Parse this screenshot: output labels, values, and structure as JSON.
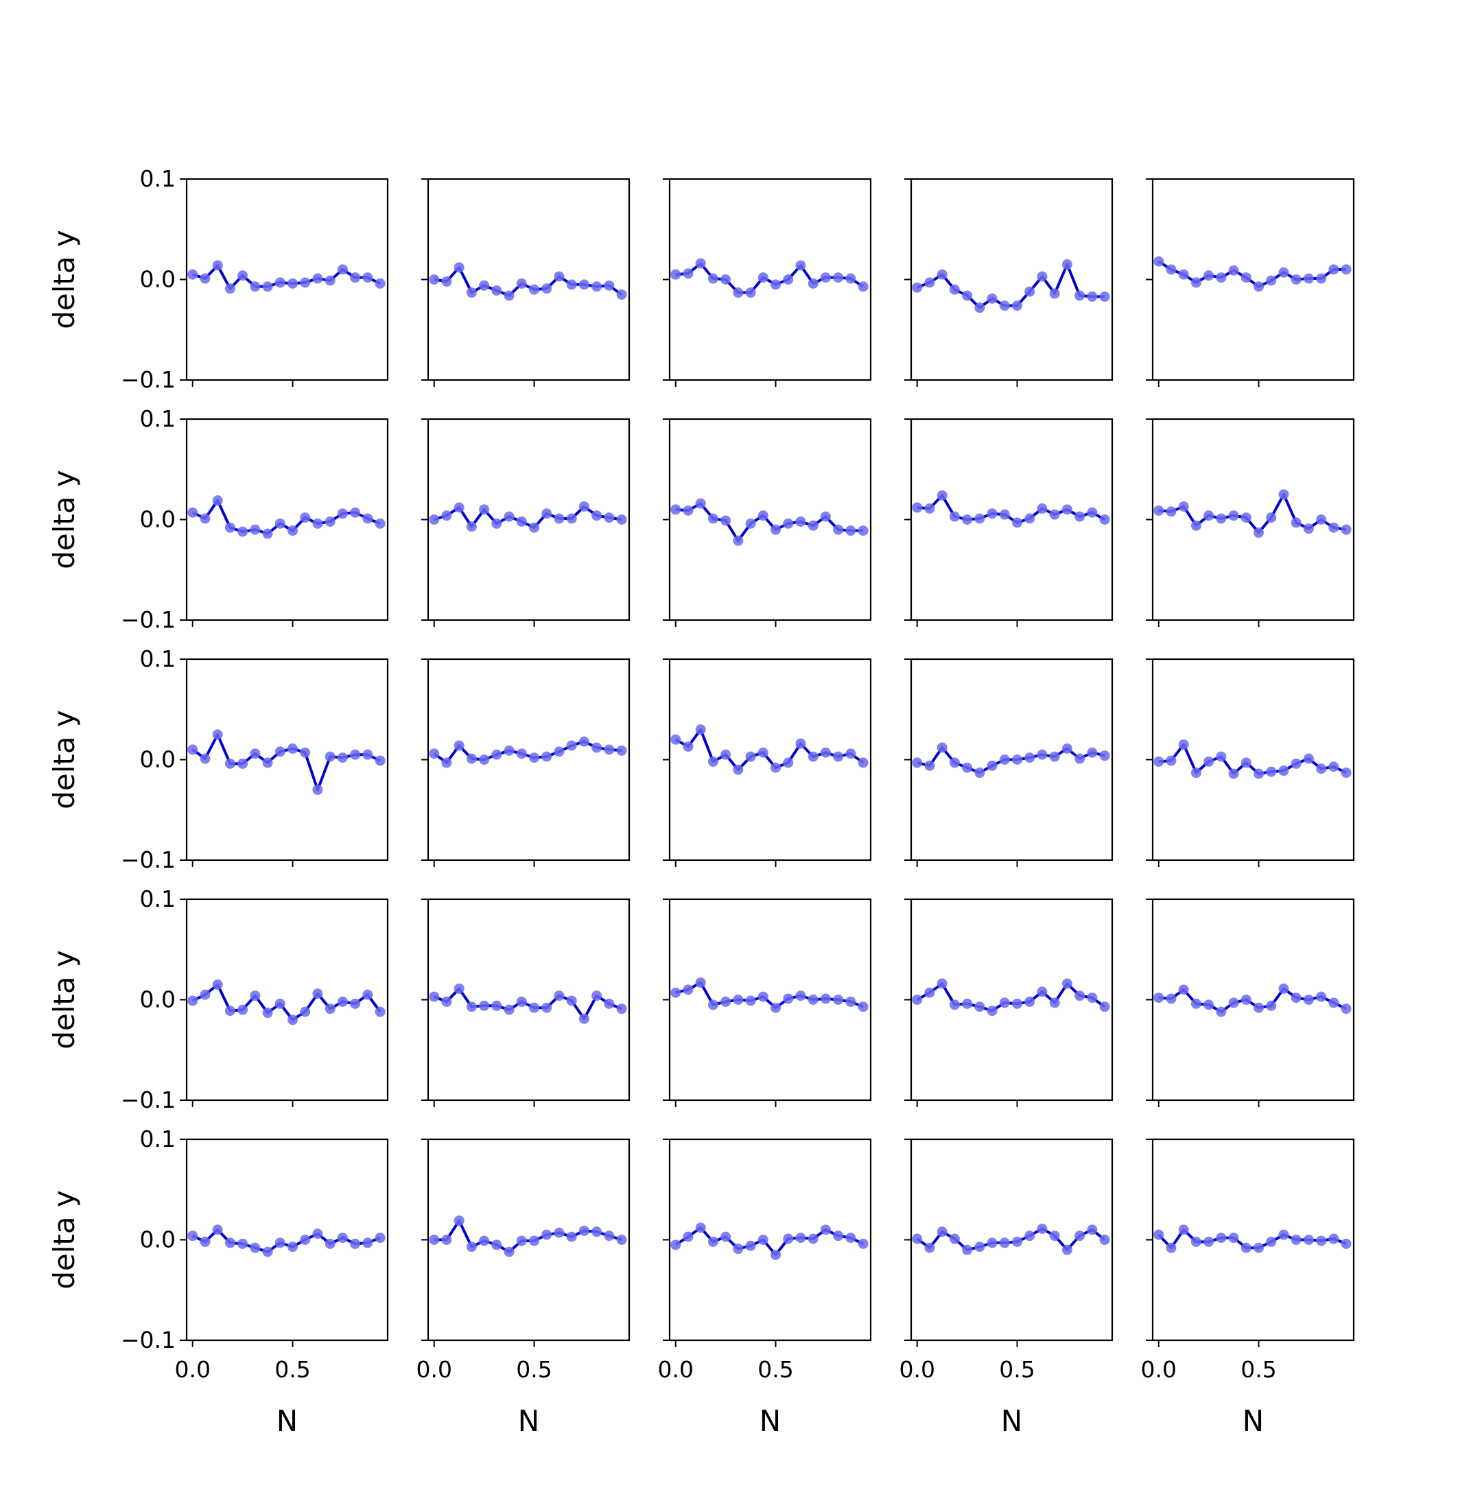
{
  "chart_data": {
    "type": "line",
    "layout": "5x5 grid of small multiples",
    "shared_axes": true,
    "xlabel": "N",
    "ylabel": "delta y",
    "xticks": [
      0.0,
      0.5
    ],
    "xtick_labels": [
      "0.0",
      "0.5"
    ],
    "yticks": [
      -0.1,
      0.0,
      0.1
    ],
    "ytick_labels": [
      "−0.1",
      "0.0",
      "0.1"
    ],
    "xlim": [
      -0.03,
      0.975
    ],
    "ylim": [
      -0.1,
      0.1
    ],
    "grid": false,
    "legend": false,
    "x": [
      0.0,
      0.0625,
      0.125,
      0.1875,
      0.25,
      0.3125,
      0.375,
      0.4375,
      0.5,
      0.5625,
      0.625,
      0.6875,
      0.75,
      0.8125,
      0.875,
      0.9375
    ],
    "colors": {
      "line": "#0000cc",
      "marker": "#6a6aee",
      "frame": "#000000"
    },
    "panels": [
      [
        0.005,
        0.001,
        0.014,
        -0.009,
        0.004,
        -0.007,
        -0.007,
        -0.003,
        -0.004,
        -0.003,
        0.001,
        -0.001,
        0.01,
        0.002,
        0.002,
        -0.004
      ],
      [
        0.0,
        -0.002,
        0.012,
        -0.013,
        -0.006,
        -0.011,
        -0.016,
        -0.004,
        -0.01,
        -0.009,
        0.003,
        -0.005,
        -0.005,
        -0.007,
        -0.006,
        -0.015
      ],
      [
        0.005,
        0.006,
        0.016,
        0.001,
        0.0,
        -0.013,
        -0.013,
        0.002,
        -0.005,
        0.0,
        0.014,
        -0.004,
        0.002,
        0.002,
        0.001,
        -0.007
      ],
      [
        -0.008,
        -0.003,
        0.005,
        -0.01,
        -0.016,
        -0.028,
        -0.019,
        -0.026,
        -0.026,
        -0.012,
        0.003,
        -0.014,
        0.015,
        -0.016,
        -0.017,
        -0.017
      ],
      [
        0.018,
        0.01,
        0.005,
        -0.003,
        0.004,
        0.002,
        0.009,
        0.002,
        -0.007,
        -0.001,
        0.007,
        0.0,
        0.001,
        0.001,
        0.01,
        0.01
      ],
      [
        0.007,
        0.001,
        0.019,
        -0.008,
        -0.012,
        -0.01,
        -0.014,
        -0.004,
        -0.011,
        0.002,
        -0.004,
        -0.002,
        0.006,
        0.007,
        0.001,
        -0.004
      ],
      [
        0.0,
        0.004,
        0.012,
        -0.007,
        0.01,
        -0.004,
        0.003,
        -0.002,
        -0.008,
        0.006,
        0.001,
        0.001,
        0.013,
        0.004,
        0.002,
        0.0
      ],
      [
        0.01,
        0.009,
        0.016,
        0.001,
        -0.001,
        -0.021,
        -0.004,
        0.004,
        -0.01,
        -0.004,
        -0.002,
        -0.006,
        0.003,
        -0.01,
        -0.011,
        -0.011
      ],
      [
        0.012,
        0.011,
        0.024,
        0.003,
        0.0,
        0.001,
        0.006,
        0.005,
        -0.003,
        0.001,
        0.011,
        0.005,
        0.01,
        0.003,
        0.007,
        0.0
      ],
      [
        0.009,
        0.008,
        0.013,
        -0.006,
        0.004,
        0.001,
        0.004,
        0.002,
        -0.013,
        0.002,
        0.025,
        -0.003,
        -0.009,
        0.0,
        -0.008,
        -0.01
      ],
      [
        0.01,
        0.001,
        0.025,
        -0.004,
        -0.004,
        0.006,
        -0.003,
        0.008,
        0.011,
        0.007,
        -0.03,
        0.003,
        0.002,
        0.005,
        0.005,
        -0.001
      ],
      [
        0.006,
        -0.003,
        0.014,
        0.001,
        0.0,
        0.005,
        0.009,
        0.006,
        0.002,
        0.003,
        0.008,
        0.014,
        0.018,
        0.012,
        0.01,
        0.009
      ],
      [
        0.02,
        0.013,
        0.03,
        -0.002,
        0.005,
        -0.01,
        0.003,
        0.007,
        -0.008,
        -0.003,
        0.016,
        0.003,
        0.007,
        0.003,
        0.006,
        -0.003
      ],
      [
        -0.003,
        -0.006,
        0.012,
        -0.003,
        -0.008,
        -0.013,
        -0.006,
        0.0,
        0.0,
        0.002,
        0.005,
        0.003,
        0.011,
        0.001,
        0.007,
        0.004
      ],
      [
        -0.002,
        -0.001,
        0.015,
        -0.013,
        -0.002,
        0.003,
        -0.014,
        -0.003,
        -0.014,
        -0.012,
        -0.011,
        -0.004,
        0.001,
        -0.009,
        -0.007,
        -0.013
      ],
      [
        -0.001,
        0.005,
        0.015,
        -0.011,
        -0.01,
        0.004,
        -0.013,
        -0.004,
        -0.02,
        -0.012,
        0.006,
        -0.009,
        -0.002,
        -0.004,
        0.005,
        -0.012
      ],
      [
        0.003,
        -0.002,
        0.011,
        -0.007,
        -0.006,
        -0.006,
        -0.01,
        -0.002,
        -0.008,
        -0.008,
        0.004,
        -0.001,
        -0.019,
        0.004,
        -0.004,
        -0.009
      ],
      [
        0.007,
        0.01,
        0.017,
        -0.005,
        -0.002,
        0.0,
        -0.001,
        0.003,
        -0.008,
        0.001,
        0.004,
        0.0,
        0.001,
        0.0,
        -0.002,
        -0.007
      ],
      [
        0.0,
        0.007,
        0.016,
        -0.005,
        -0.004,
        -0.007,
        -0.011,
        -0.003,
        -0.004,
        -0.002,
        0.008,
        -0.003,
        0.016,
        0.004,
        0.002,
        -0.007
      ],
      [
        0.002,
        0.001,
        0.01,
        -0.004,
        -0.005,
        -0.012,
        -0.003,
        0.0,
        -0.008,
        -0.006,
        0.011,
        0.002,
        0.0,
        0.003,
        -0.003,
        -0.009
      ],
      [
        0.004,
        -0.002,
        0.01,
        -0.003,
        -0.004,
        -0.008,
        -0.012,
        -0.003,
        -0.007,
        0.0,
        0.006,
        -0.004,
        0.002,
        -0.004,
        -0.003,
        0.002
      ],
      [
        0.0,
        0.0,
        0.019,
        -0.007,
        -0.001,
        -0.005,
        -0.012,
        -0.001,
        -0.001,
        0.005,
        0.007,
        0.003,
        0.009,
        0.008,
        0.004,
        0.0
      ],
      [
        -0.005,
        0.003,
        0.012,
        -0.002,
        0.003,
        -0.009,
        -0.006,
        0.0,
        -0.015,
        0.001,
        0.002,
        0.001,
        0.01,
        0.004,
        0.002,
        -0.004
      ],
      [
        0.001,
        -0.008,
        0.008,
        0.001,
        -0.01,
        -0.007,
        -0.003,
        -0.003,
        -0.002,
        0.004,
        0.011,
        0.004,
        -0.01,
        0.004,
        0.01,
        0.0
      ],
      [
        0.005,
        -0.008,
        0.01,
        -0.002,
        -0.002,
        0.002,
        0.002,
        -0.008,
        -0.008,
        -0.002,
        0.005,
        0.0,
        0.0,
        -0.001,
        0.001,
        -0.004
      ]
    ]
  }
}
